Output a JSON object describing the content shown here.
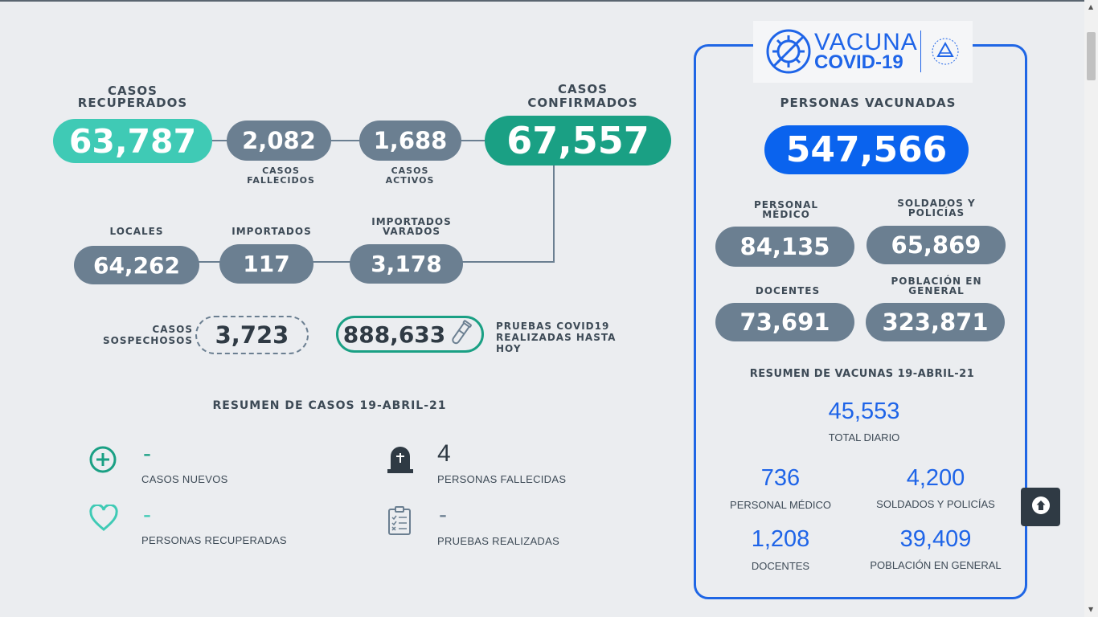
{
  "cases": {
    "recuperados_label": "CASOS\nRECUPERADOS",
    "recuperados": "63,787",
    "fallecidos": "2,082",
    "fallecidos_label": "CASOS FALLECIDOS",
    "activos": "1,688",
    "activos_label": "CASOS ACTIVOS",
    "confirmados_label": "CASOS CONFIRMADOS",
    "confirmados": "67,557",
    "locales_label": "LOCALES",
    "locales": "64,262",
    "importados_label": "IMPORTADOS",
    "importados": "117",
    "varados_label": "IMPORTADOS VARADOS",
    "varados": "3,178",
    "sospechosos_label": "CASOS SOSPECHOSOS",
    "sospechosos": "3,723",
    "pruebas": "888,633",
    "pruebas_label": "PRUEBAS COVID19 REALIZADAS HASTA HOY"
  },
  "resumen_casos": {
    "title": "RESUMEN DE CASOS 19-ABRIL-21",
    "items": [
      {
        "icon": "plus-circle-icon",
        "value": "-",
        "label": "CASOS NUEVOS"
      },
      {
        "icon": "tombstone-icon",
        "value": "4",
        "label": "PERSONAS FALLECIDAS"
      },
      {
        "icon": "heart-icon",
        "value": "-",
        "label": "PERSONAS RECUPERADAS"
      },
      {
        "icon": "clipboard-icon",
        "value": "-",
        "label": "PRUEBAS REALIZADAS"
      }
    ]
  },
  "vacunas": {
    "logo_line1": "VACUNA",
    "logo_line2": "COVID-19",
    "personas_label": "PERSONAS VACUNADAS",
    "personas": "547,566",
    "medico_label": "PERSONAL MÉDICO",
    "medico": "84,135",
    "soldados_label": "SOLDADOS Y POLICÍAS",
    "soldados": "65,869",
    "docentes_label": "DOCENTES",
    "docentes": "73,691",
    "poblacion_label": "POBLACIÓN EN GENERAL",
    "poblacion": "323,871",
    "resumen_title": "RESUMEN DE VACUNAS 19-ABRIL-21",
    "total_diario": "45,553",
    "total_diario_label": "TOTAL DIARIO",
    "d_medico": "736",
    "d_medico_label": "PERSONAL MÉDICO",
    "d_soldados": "4,200",
    "d_soldados_label": "SOLDADOS Y POLICÍAS",
    "d_docentes": "1,208",
    "d_docentes_label": "DOCENTES",
    "d_poblacion": "39,409",
    "d_poblacion_label": "POBLACIÓN EN GENERAL"
  },
  "colors": {
    "slate": "#6b7f91",
    "teal": "#3fcab5",
    "green": "#1aa084",
    "blue": "#0a63ee"
  }
}
